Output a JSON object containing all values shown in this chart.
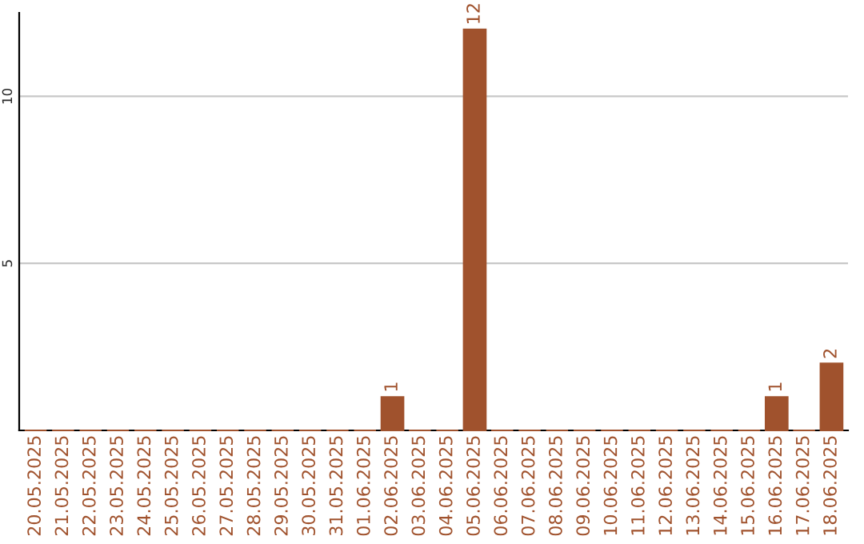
{
  "chart_data": {
    "type": "bar",
    "categories": [
      "20.05.2025",
      "21.05.2025",
      "22.05.2025",
      "23.05.2025",
      "24.05.2025",
      "25.05.2025",
      "26.05.2025",
      "27.05.2025",
      "28.05.2025",
      "29.05.2025",
      "30.05.2025",
      "31.05.2025",
      "01.06.2025",
      "02.06.2025",
      "03.06.2025",
      "04.06.2025",
      "05.06.2025",
      "06.06.2025",
      "07.06.2025",
      "08.06.2025",
      "09.06.2025",
      "10.06.2025",
      "11.06.2025",
      "12.06.2025",
      "13.06.2025",
      "14.06.2025",
      "15.06.2025",
      "16.06.2025",
      "17.06.2025",
      "18.06.2025"
    ],
    "values": [
      0,
      0,
      0,
      0,
      0,
      0,
      0,
      0,
      0,
      0,
      0,
      0,
      0,
      1,
      0,
      0,
      12,
      0,
      0,
      0,
      0,
      0,
      0,
      0,
      0,
      0,
      0,
      1,
      0,
      2
    ],
    "value_labels": [
      null,
      null,
      null,
      null,
      null,
      null,
      null,
      null,
      null,
      null,
      null,
      null,
      null,
      "1",
      null,
      null,
      "12",
      null,
      null,
      null,
      null,
      null,
      null,
      null,
      null,
      null,
      null,
      "1",
      null,
      "2"
    ],
    "color": "#a0522d",
    "ylim": [
      0,
      12.5
    ],
    "yticks": [
      5,
      10
    ],
    "grid": "y"
  }
}
